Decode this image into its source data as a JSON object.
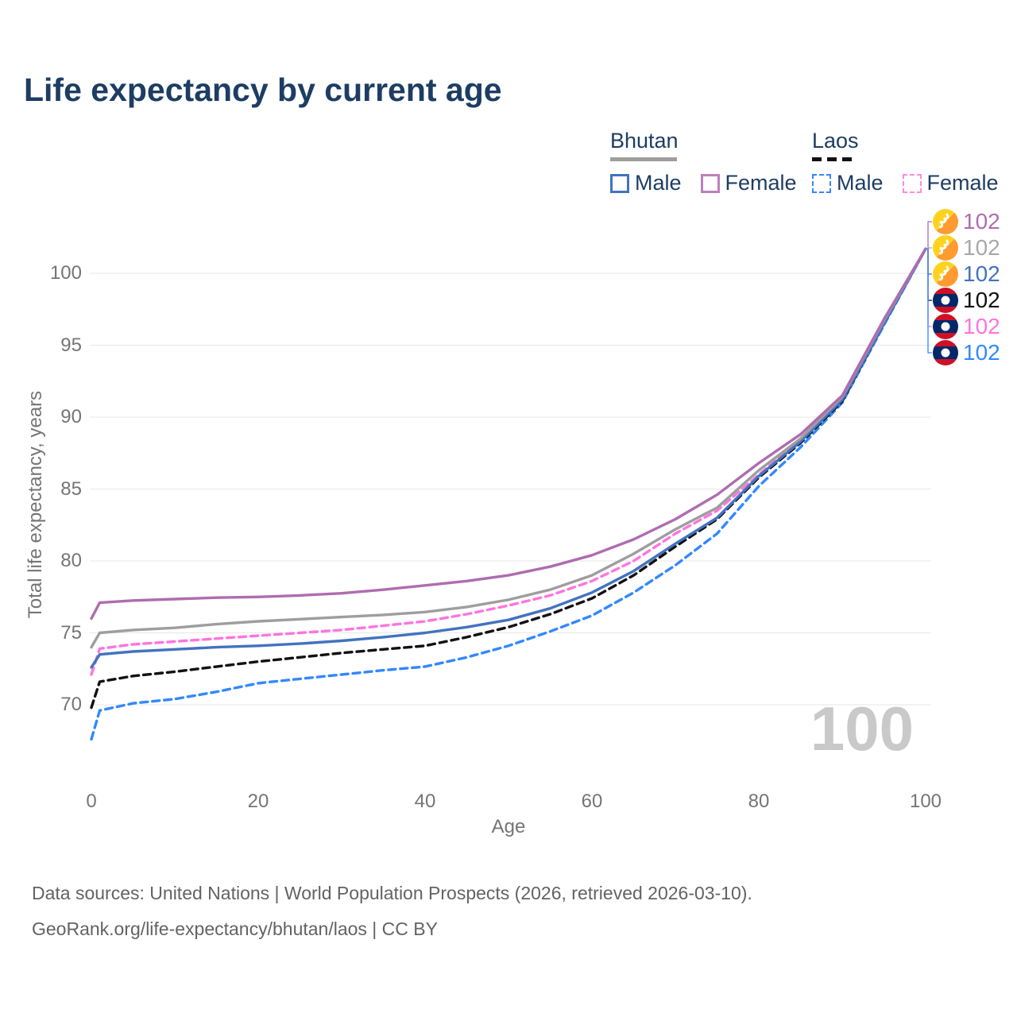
{
  "title": "Life expectancy by current age",
  "legend": {
    "groups": [
      {
        "title": "Bhutan",
        "line_style": "solid",
        "underline_color": "#9e9e9e",
        "items": [
          {
            "label": "Male",
            "color": "#4273bf",
            "dashed": false
          },
          {
            "label": "Female",
            "color": "#bd7fbc",
            "dashed": false
          }
        ]
      },
      {
        "title": "Laos",
        "line_style": "dashed",
        "underline_color": "#111111",
        "items": [
          {
            "label": "Male",
            "color": "#3388ff",
            "dashed": true
          },
          {
            "label": "Female",
            "color": "#ff8ae2",
            "dashed": true
          }
        ]
      }
    ]
  },
  "end_labels": [
    {
      "series": "Bhutan Female",
      "flag": "bhutan",
      "value": "102",
      "color": "#b06dad"
    },
    {
      "series": "Bhutan",
      "flag": "bhutan",
      "value": "102",
      "color": "#a8a8a8"
    },
    {
      "series": "Bhutan Male",
      "flag": "bhutan",
      "value": "102",
      "color": "#4273bf"
    },
    {
      "series": "Laos",
      "flag": "laos",
      "value": "102",
      "color": "#111111"
    },
    {
      "series": "Laos Female",
      "flag": "laos",
      "value": "102",
      "color": "#ff74df"
    },
    {
      "series": "Laos Male",
      "flag": "laos",
      "value": "102",
      "color": "#3388ff"
    }
  ],
  "watermark": "100",
  "footer": {
    "line1": "Data sources: United Nations | World Population Prospects (2026, retrieved 2026-03-10).",
    "line2": "GeoRank.org/life-expectancy/bhutan/laos | CC BY"
  },
  "chart_data": {
    "type": "line",
    "title": "Life expectancy by current age",
    "xlabel": "Age",
    "ylabel": "Total life expectancy, years",
    "x_ticks": [
      0,
      20,
      40,
      60,
      80,
      100
    ],
    "y_ticks": [
      70,
      75,
      80,
      85,
      90,
      95,
      100
    ],
    "xlim": [
      0,
      100
    ],
    "ylim": [
      66.5,
      103.5
    ],
    "grid": "horizontal-only",
    "legend_position": "top-right",
    "ages": [
      0,
      1,
      5,
      10,
      15,
      20,
      25,
      30,
      35,
      40,
      45,
      50,
      55,
      60,
      65,
      70,
      75,
      80,
      85,
      90,
      95,
      100
    ],
    "series": [
      {
        "id": "laos-male",
        "name": "Laos Male",
        "color": "#3388ff",
        "dash": "dashed",
        "values": [
          67.6,
          69.6,
          70.1,
          70.4,
          70.9,
          71.5,
          71.8,
          72.1,
          72.4,
          72.65,
          73.3,
          74.1,
          75.1,
          76.2,
          77.8,
          79.7,
          81.9,
          85.2,
          87.9,
          91.0,
          96.4,
          101.7
        ]
      },
      {
        "id": "laos",
        "name": "Laos",
        "color": "#111111",
        "dash": "dashed",
        "values": [
          69.8,
          71.6,
          72.0,
          72.3,
          72.65,
          73.0,
          73.3,
          73.6,
          73.85,
          74.1,
          74.7,
          75.4,
          76.3,
          77.4,
          79.0,
          81.0,
          82.9,
          85.8,
          88.2,
          91.1,
          96.5,
          101.7
        ]
      },
      {
        "id": "laos-female",
        "name": "Laos Female",
        "color": "#ff74df",
        "dash": "dashed",
        "values": [
          72.1,
          73.9,
          74.2,
          74.4,
          74.6,
          74.8,
          75.0,
          75.2,
          75.5,
          75.8,
          76.3,
          76.9,
          77.6,
          78.6,
          80.0,
          81.9,
          83.5,
          86.0,
          88.4,
          91.3,
          96.6,
          101.7
        ]
      },
      {
        "id": "bhutan-male",
        "name": "Bhutan Male",
        "color": "#4273bf",
        "dash": "solid",
        "values": [
          72.6,
          73.5,
          73.7,
          73.85,
          74.0,
          74.1,
          74.25,
          74.45,
          74.7,
          75.0,
          75.4,
          75.9,
          76.7,
          77.8,
          79.3,
          81.2,
          83.0,
          85.9,
          88.3,
          91.2,
          96.5,
          101.7
        ]
      },
      {
        "id": "bhutan",
        "name": "Bhutan",
        "color": "#9e9e9e",
        "dash": "solid",
        "values": [
          74.0,
          75.0,
          75.2,
          75.35,
          75.6,
          75.8,
          75.95,
          76.1,
          76.25,
          76.45,
          76.8,
          77.3,
          78.0,
          79.0,
          80.5,
          82.2,
          83.7,
          86.3,
          88.5,
          91.4,
          96.7,
          101.7
        ]
      },
      {
        "id": "bhutan-female",
        "name": "Bhutan Female",
        "color": "#af6cb0",
        "dash": "solid",
        "values": [
          76.0,
          77.1,
          77.25,
          77.35,
          77.45,
          77.5,
          77.6,
          77.75,
          78.0,
          78.3,
          78.6,
          79.0,
          79.6,
          80.4,
          81.5,
          82.9,
          84.6,
          86.8,
          88.8,
          91.5,
          96.8,
          101.7
        ]
      }
    ]
  }
}
